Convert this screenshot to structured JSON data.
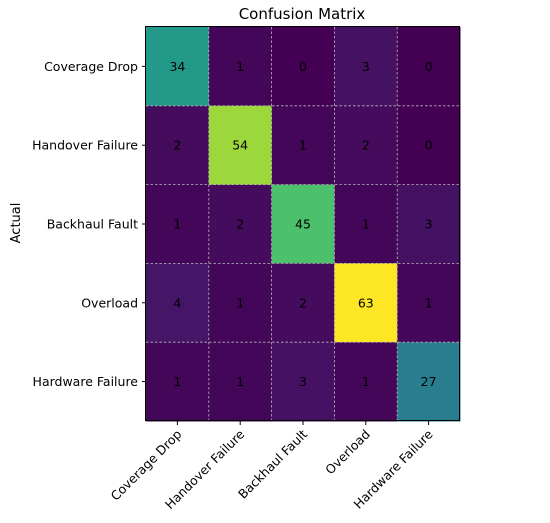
{
  "chart_data": {
    "type": "heatmap",
    "title": "Confusion Matrix",
    "ylabel": "Actual",
    "xlabel": "",
    "row_labels": [
      "Coverage Drop",
      "Handover Failure",
      "Backhaul Fault",
      "Overload",
      "Hardware Failure"
    ],
    "col_labels": [
      "Coverage Drop",
      "Handover Failure",
      "Backhaul Fault",
      "Overload",
      "Hardware Failure"
    ],
    "values": [
      [
        34,
        1,
        0,
        3,
        0
      ],
      [
        2,
        54,
        1,
        2,
        0
      ],
      [
        1,
        2,
        45,
        1,
        3
      ],
      [
        4,
        1,
        2,
        63,
        1
      ],
      [
        1,
        1,
        3,
        1,
        27
      ]
    ],
    "colormap": "viridis",
    "grid": true,
    "grid_color": "#b8b8b8"
  }
}
